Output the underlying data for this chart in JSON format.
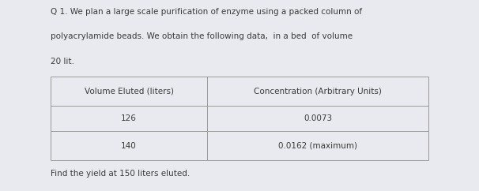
{
  "outer_bg": "#e8eaf0",
  "content_bg": "#ffffff",
  "question_line1": "Q 1. We plan a large scale purification of enzyme using a packed column of",
  "question_line2": "polyacrylamide beads. We obtain the following data,  in a bed  of volume",
  "question_line3": "20 lit.",
  "col1_header": "Volume Eluted (liters)",
  "col2_header": "Concentration (Arbitrary Units)",
  "row1_col1": "126",
  "row1_col2": "0.0073",
  "row2_col1": "140",
  "row2_col2": "0.0162 (maximum)",
  "footer_text": "Find the yield at 150 liters eluted.",
  "text_color": "#3a3a3a",
  "table_border_color": "#999999",
  "font_size": 7.5
}
